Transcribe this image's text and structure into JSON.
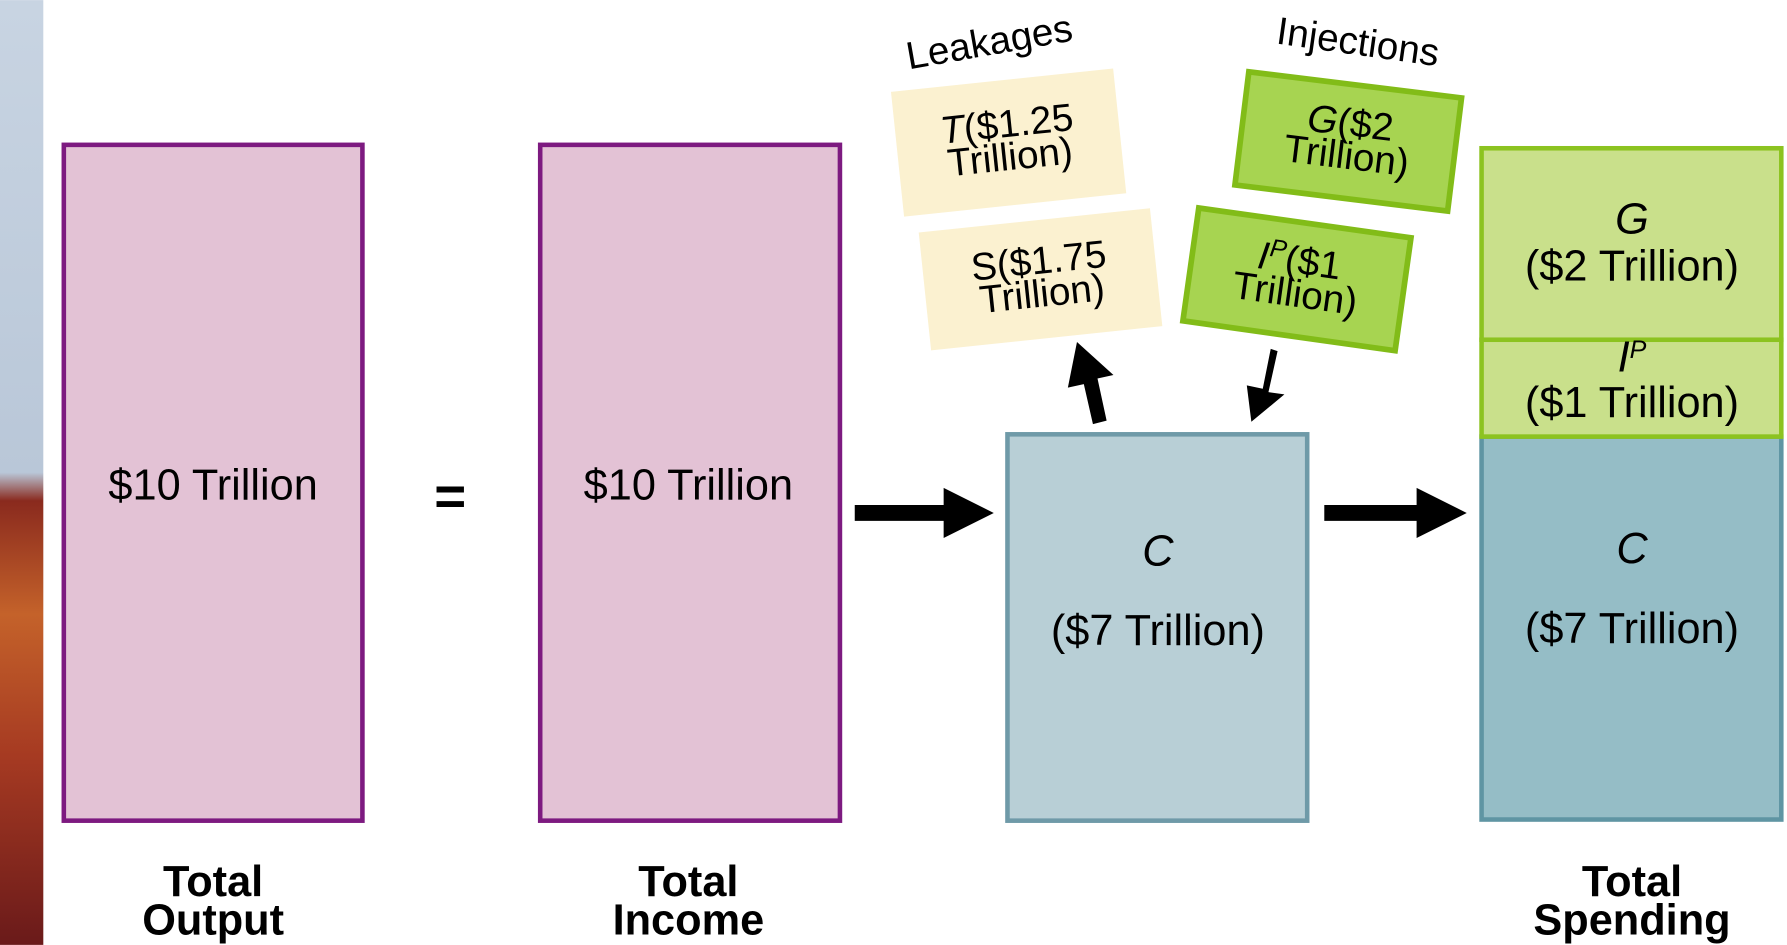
{
  "total_output": {
    "box_label": "$10 Trillion",
    "caption": [
      "Total",
      "Output"
    ]
  },
  "equals": "=",
  "total_income": {
    "box_label": "$10 Trillion",
    "caption": [
      "Total",
      "Income"
    ]
  },
  "consumption": {
    "symbol": "C",
    "amount": "($7 Trillion)"
  },
  "leakages": {
    "title": "Leakages",
    "items": [
      {
        "symbol": "T",
        "line1": "($1.25",
        "line2": "Trillion)"
      },
      {
        "symbol": "S",
        "line1": "($1.75",
        "line2": "Trillion)"
      }
    ]
  },
  "injections": {
    "title": "Injections",
    "items": [
      {
        "symbol": "G",
        "line1": "($2",
        "line2": "Trillion)"
      },
      {
        "symbol": "I",
        "superscript": "P",
        "line1": "($1",
        "line2": "Trillion)"
      }
    ]
  },
  "total_spending": {
    "segments": [
      {
        "symbol": "G",
        "amount": "($2 Trillion)"
      },
      {
        "symbol": "I",
        "superscript": "P",
        "amount": "($1 Trillion)"
      },
      {
        "symbol": "C",
        "amount": "($7 Trillion)"
      }
    ],
    "caption": [
      "Total",
      "Spending"
    ]
  }
}
